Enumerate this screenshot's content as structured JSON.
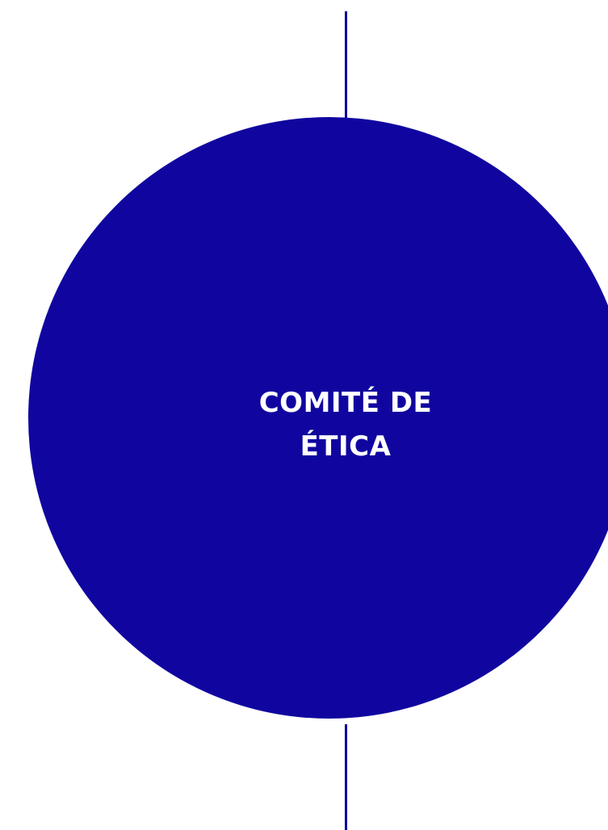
{
  "node": {
    "label_line1": "COMITÉ DE",
    "label_line2": "ÉTICA"
  },
  "colors": {
    "circle_fill": "#10069f",
    "line_stroke": "#0e069c",
    "label_text": "#ffffff",
    "background": "#ffffff"
  }
}
